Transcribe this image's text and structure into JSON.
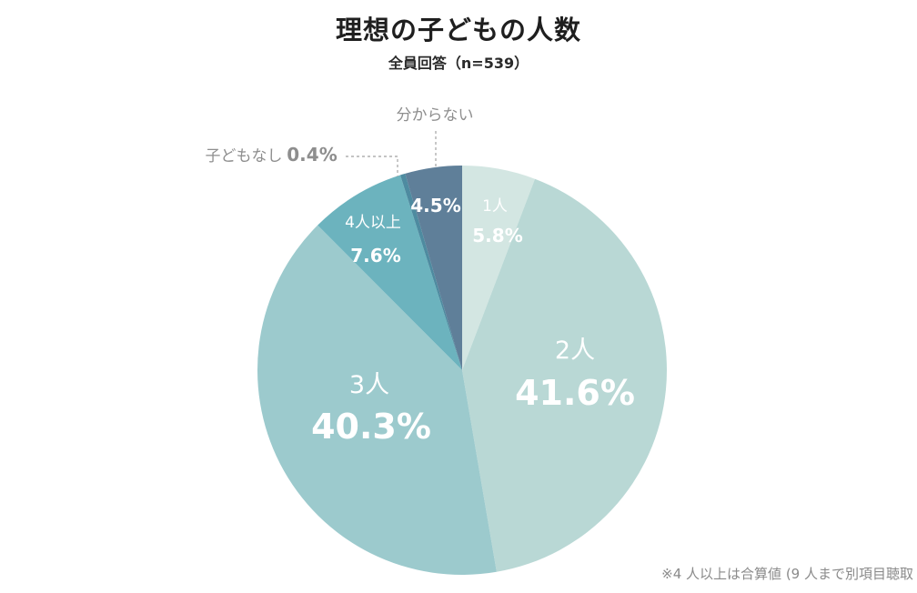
{
  "chart_data": {
    "type": "pie",
    "title": "理想の子どもの人数",
    "subtitle": "全員回答（n=539）",
    "slices": [
      {
        "label": "1人",
        "value": 5.8,
        "value_text": "5.8%",
        "color": "#d3e6e2"
      },
      {
        "label": "2人",
        "value": 41.6,
        "value_text": "41.6%",
        "color": "#b9d8d5"
      },
      {
        "label": "3人",
        "value": 40.3,
        "value_text": "40.3%",
        "color": "#9ccacd"
      },
      {
        "label": "4人以上",
        "value": 7.6,
        "value_text": "7.6%",
        "color": "#6cb3be"
      },
      {
        "label": "子どもなし",
        "value": 0.4,
        "value_text": "0.4%",
        "color": "#4e8ba0"
      },
      {
        "label": "分からない",
        "value": 4.5,
        "value_text": "4.5%",
        "color": "#5f7f99"
      }
    ],
    "footnote": "※4 人以上は合算値 (9 人まで別項目聴取"
  }
}
